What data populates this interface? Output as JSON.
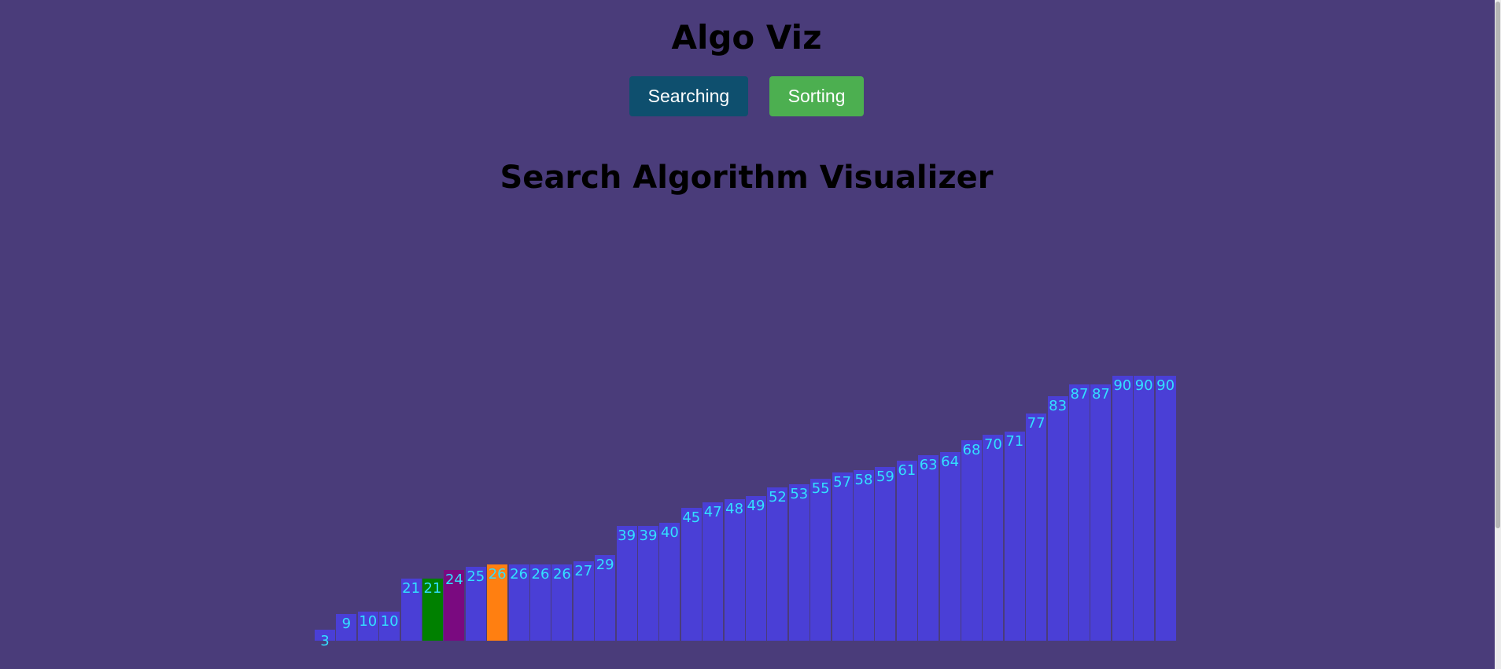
{
  "app": {
    "title": "Algo Viz"
  },
  "nav": {
    "searching_label": "Searching",
    "sorting_label": "Sorting"
  },
  "main": {
    "title": "Search Algorithm Visualizer"
  },
  "colors": {
    "background": "#4a3c7a",
    "bar_default": "#4a3fd6",
    "bar_found": "#008000",
    "bar_current": "#7a0a80",
    "bar_target": "#ff7f11",
    "label": "#33e0ff",
    "searching_button": "#0e4f6e",
    "sorting_button": "#4caf50"
  },
  "chart_data": {
    "type": "bar",
    "values": [
      3,
      9,
      10,
      10,
      21,
      21,
      24,
      25,
      26,
      26,
      26,
      26,
      27,
      29,
      39,
      39,
      40,
      45,
      47,
      48,
      49,
      52,
      53,
      55,
      57,
      58,
      59,
      61,
      63,
      64,
      68,
      70,
      71,
      77,
      83,
      87,
      87,
      90,
      90,
      90
    ],
    "highlights": {
      "5": "found",
      "6": "current",
      "8": "target"
    }
  }
}
